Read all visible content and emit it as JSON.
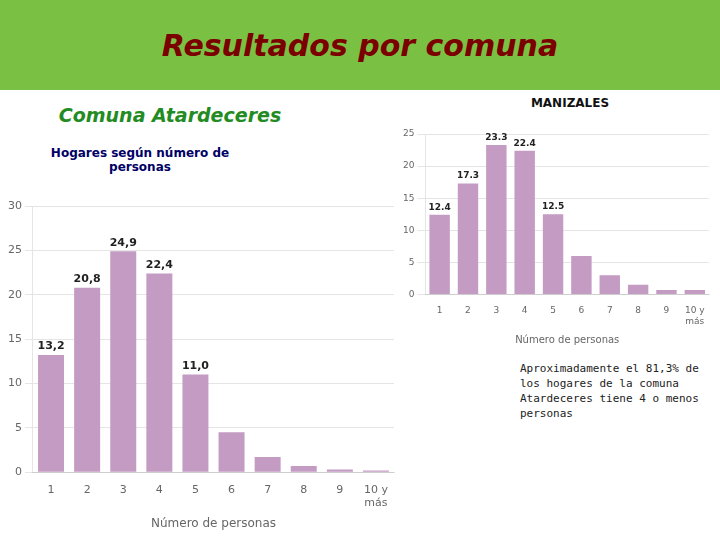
{
  "chart_data": [
    {
      "type": "bar",
      "title": "Resultados por comuna",
      "subtitle": [
        "MANIZALES",
        "Comuna Atardeceres",
        "Hogares según número de\npersonas"
      ],
      "annotations": [
        "Aproximadamente el 81,3% de\nlos hogares de la comuna\nAtardeceres tiene 4 o menos\npersonas"
      ],
      "x_label": "Número de personas",
      "categories": [
        "1",
        "2",
        "3",
        "4",
        "5",
        "6",
        "7",
        "8",
        "9",
        "10 y\nmás"
      ],
      "values": [
        13.2,
        20.8,
        24.9,
        22.4,
        11.0,
        4.5,
        1.7,
        0.7,
        0.3,
        0.2
      ],
      "value_labels": [
        "13,2",
        "20,8",
        "24,9",
        "22,4",
        "11,0",
        null,
        null,
        null,
        null,
        null
      ],
      "data_labels": true,
      "color": "#c39bc3",
      "ylim": [
        0,
        30
      ],
      "yticks": [
        0,
        5,
        10,
        15,
        20,
        25,
        30
      ],
      "grid": true
    },
    {
      "type": "bar",
      "x_label": "Número de personas",
      "categories": [
        "1",
        "2",
        "3",
        "4",
        "5",
        "6",
        "7",
        "8",
        "9",
        "10 y\nmás"
      ],
      "values": [
        12.4,
        17.3,
        23.3,
        22.4,
        12.5,
        6.0,
        3.0,
        1.5,
        0.7,
        0.7
      ],
      "value_labels": [
        "12.4",
        "17.3",
        "23.3",
        "22.4",
        "12.5",
        null,
        null,
        null,
        null,
        null
      ],
      "data_labels": true,
      "color": "#c39bc3",
      "ylim": [
        0,
        25
      ],
      "yticks": [
        0,
        5,
        10,
        15,
        20,
        25
      ],
      "grid": true
    }
  ]
}
